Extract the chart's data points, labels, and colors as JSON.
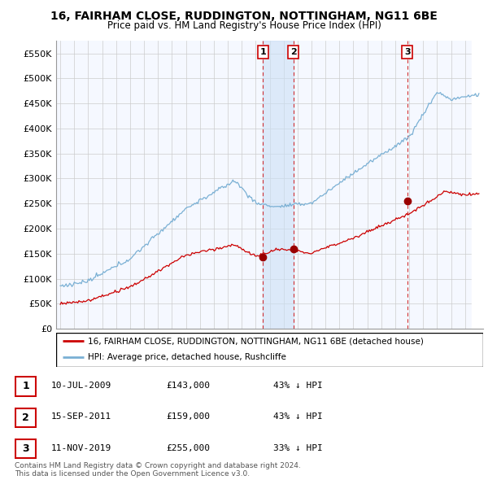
{
  "title": "16, FAIRHAM CLOSE, RUDDINGTON, NOTTINGHAM, NG11 6BE",
  "subtitle": "Price paid vs. HM Land Registry's House Price Index (HPI)",
  "ylim": [
    0,
    575000
  ],
  "yticks": [
    0,
    50000,
    100000,
    150000,
    200000,
    250000,
    300000,
    350000,
    400000,
    450000,
    500000,
    550000
  ],
  "xlim_start": 1994.7,
  "xlim_end": 2025.3,
  "sale_dates_num": [
    2009.53,
    2011.71,
    2019.86
  ],
  "sale_prices": [
    143000,
    159000,
    255000
  ],
  "sale_labels": [
    "1",
    "2",
    "3"
  ],
  "red_line_color": "#cc0000",
  "blue_line_color": "#7ab0d4",
  "shade_color": "#ddeeff",
  "grid_color": "#cccccc",
  "bg_color": "#ffffff",
  "chart_bg": "#f0f4ff",
  "legend_line1": "16, FAIRHAM CLOSE, RUDDINGTON, NOTTINGHAM, NG11 6BE (detached house)",
  "legend_line2": "HPI: Average price, detached house, Rushcliffe",
  "table_rows": [
    [
      "1",
      "10-JUL-2009",
      "£143,000",
      "43% ↓ HPI"
    ],
    [
      "2",
      "15-SEP-2011",
      "£159,000",
      "43% ↓ HPI"
    ],
    [
      "3",
      "11-NOV-2019",
      "£255,000",
      "33% ↓ HPI"
    ]
  ],
  "footnote1": "Contains HM Land Registry data © Crown copyright and database right 2024.",
  "footnote2": "This data is licensed under the Open Government Licence v3.0."
}
